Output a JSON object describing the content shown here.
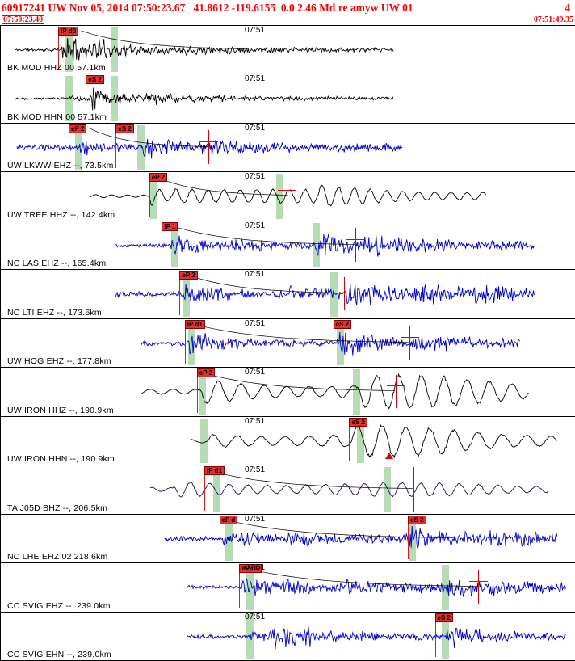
{
  "header": {
    "title": "60917241 UW Nov 05, 2014 07:50:23.67   41.8612 -119.6155  0.0 2.46 Md re amyw UW 01",
    "right_value": "4",
    "time_left": "07:50:23.40",
    "time_right": "07:51:49.35",
    "accent_color": "#ff0000"
  },
  "colors": {
    "band": "#b5dcb5",
    "pick": "#e03030",
    "marker": "#e00000",
    "purple": "#3a0080",
    "wave_blue": "#0000cc",
    "wave_black": "#000000"
  },
  "traces": [
    {
      "label": "BK MOD HHZ 00 57.1km",
      "time_label": "07:51",
      "color": "#000000",
      "wave": {
        "style": "hf",
        "x0": 0.025,
        "x1": 0.684,
        "base": 1.8,
        "seed": 11,
        "bursts": [
          {
            "at": 0.105,
            "amp": 17,
            "decay": 0.055
          },
          {
            "at": 0.16,
            "amp": 7,
            "decay": 0.1
          },
          {
            "at": 0.3,
            "amp": 2.5,
            "decay": 0.3
          }
        ]
      },
      "picks": [
        {
          "label": "iP d0",
          "x": 0.1
        }
      ],
      "bands": [
        0.118,
        0.197
      ],
      "markers": [
        {
          "type": "hline",
          "x0": 0.107,
          "x1": 0.432
        },
        {
          "type": "whisker",
          "x": 0.432
        }
      ],
      "coda": {
        "x0": 0.14,
        "x1": 0.432
      }
    },
    {
      "label": "BK MOD HHN 00 57.1km",
      "time_label": "07:51",
      "color": "#000000",
      "wave": {
        "style": "hf",
        "x0": 0.025,
        "x1": 0.684,
        "base": 1.5,
        "seed": 22,
        "bursts": [
          {
            "at": 0.118,
            "amp": 4,
            "decay": 0.03
          },
          {
            "at": 0.155,
            "amp": 12,
            "decay": 0.06
          },
          {
            "at": 0.24,
            "amp": 4,
            "decay": 0.2
          }
        ]
      },
      "picks": [
        {
          "label": "eS 2",
          "x": 0.148
        }
      ],
      "bands": [
        0.118,
        0.197
      ],
      "markers": []
    },
    {
      "label": "UW LKWW EHZ --, 73.5km",
      "time_label": "07:51",
      "color": "#0000cc",
      "wave": {
        "style": "hf",
        "x0": 0.028,
        "x1": 0.7,
        "base": 3.5,
        "seed": 33,
        "bursts": [
          {
            "at": 0.135,
            "amp": 7,
            "decay": 0.05
          },
          {
            "at": 0.245,
            "amp": 11,
            "decay": 0.06
          },
          {
            "at": 0.35,
            "amp": 4,
            "decay": 0.25
          }
        ]
      },
      "picks": [
        {
          "label": "eP 2",
          "x": 0.118
        },
        {
          "label": "eS 2",
          "x": 0.2
        }
      ],
      "bands": [
        0.135,
        0.243
      ],
      "markers": [
        {
          "type": "whisker",
          "x": 0.361
        }
      ],
      "coda": {
        "x0": 0.155,
        "x1": 0.361
      }
    },
    {
      "label": "UW TREE HHZ --, 142.4km",
      "time_label": "07:51",
      "color": "#000000",
      "wave": {
        "style": "lp",
        "x0": 0.155,
        "x1": 0.845,
        "base": 2.5,
        "seed": 44,
        "wavelength": 20,
        "bursts": [
          {
            "at": 0.258,
            "amp": 20,
            "decay": 0.04
          },
          {
            "at": 0.3,
            "amp": 9,
            "decay": 0.45
          },
          {
            "at": 0.55,
            "amp": 5,
            "decay": 0.4
          }
        ]
      },
      "picks": [
        {
          "label": "eP 2",
          "x": 0.258
        }
      ],
      "bands": [
        0.265,
        0.485
      ],
      "markers": [
        {
          "type": "whisker",
          "x": 0.497
        }
      ],
      "coda": {
        "x0": 0.27,
        "x1": 0.5
      }
    },
    {
      "label": "NC LAS EHZ --, 165.4km",
      "time_label": "07:51",
      "color": "#0000cc",
      "wave": {
        "style": "hf",
        "x0": 0.2,
        "x1": 0.93,
        "base": 2.0,
        "seed": 55,
        "bursts": [
          {
            "at": 0.295,
            "amp": 15,
            "decay": 0.06
          },
          {
            "at": 0.4,
            "amp": 4,
            "decay": 0.3
          },
          {
            "at": 0.545,
            "amp": 15,
            "decay": 0.06
          },
          {
            "at": 0.63,
            "amp": 7,
            "decay": 0.2
          }
        ]
      },
      "picks": [
        {
          "label": "iP 1",
          "x": 0.28
        }
      ],
      "bands": [
        0.302,
        0.548
      ],
      "markers": [
        {
          "type": "whisker",
          "x": 0.617
        }
      ],
      "coda": {
        "x0": 0.3,
        "x1": 0.617
      }
    },
    {
      "label": "NC LTI EHZ --, 173.6km",
      "time_label": "07:51",
      "color": "#0000cc",
      "wave": {
        "style": "hf",
        "x0": 0.2,
        "x1": 0.93,
        "base": 3.0,
        "seed": 66,
        "bursts": [
          {
            "at": 0.315,
            "amp": 11,
            "decay": 0.08
          },
          {
            "at": 0.5,
            "amp": 6,
            "decay": 0.1
          },
          {
            "at": 0.6,
            "amp": 12,
            "decay": 0.08
          },
          {
            "at": 0.72,
            "amp": 8,
            "decay": 0.1
          },
          {
            "at": 0.82,
            "amp": 7,
            "decay": 0.1
          }
        ]
      },
      "picks": [
        {
          "label": "eP 2",
          "x": 0.311
        }
      ],
      "bands": [
        0.322,
        0.578
      ],
      "markers": [
        {
          "type": "whisker",
          "x": 0.597
        }
      ],
      "coda": {
        "x0": 0.325,
        "x1": 0.597
      }
    },
    {
      "label": "UW HOG EHZ --, 177.8km",
      "time_label": "07:51",
      "color": "#0000cc",
      "wave": {
        "style": "hf",
        "x0": 0.245,
        "x1": 0.905,
        "base": 3.0,
        "seed": 77,
        "bursts": [
          {
            "at": 0.325,
            "amp": 12,
            "decay": 0.07
          },
          {
            "at": 0.585,
            "amp": 13,
            "decay": 0.08
          },
          {
            "at": 0.72,
            "amp": 5,
            "decay": 0.2
          }
        ]
      },
      "picks": [
        {
          "label": "iP d1",
          "x": 0.32
        },
        {
          "label": "eS 2",
          "x": 0.578
        }
      ],
      "bands": [
        0.332,
        0.59
      ],
      "markers": [
        {
          "type": "whisker",
          "x": 0.71
        }
      ],
      "coda": {
        "x0": 0.335,
        "x1": 0.71
      }
    },
    {
      "label": "UW IRON HHZ --, 190.9km",
      "time_label": "07:51",
      "color": "#000000",
      "wave": {
        "style": "lp",
        "x0": 0.245,
        "x1": 0.92,
        "base": 3.0,
        "seed": 88,
        "wavelength": 28,
        "bursts": [
          {
            "at": 0.345,
            "amp": 13,
            "decay": 0.5
          },
          {
            "at": 0.62,
            "amp": 15,
            "decay": 0.3
          }
        ]
      },
      "picks": [
        {
          "label": "eP 2",
          "x": 0.341
        }
      ],
      "bands": [
        0.35,
        0.618
      ],
      "markers": [
        {
          "type": "whisker",
          "x": 0.687
        }
      ],
      "coda": {
        "x0": 0.35,
        "x1": 0.687
      }
    },
    {
      "label": "UW IRON HHN --, 190.9km",
      "time_label": "07:51",
      "color": "#000000",
      "wave": {
        "style": "lp",
        "x0": 0.33,
        "x1": 0.97,
        "base": 3.0,
        "seed": 99,
        "wavelength": 30,
        "bursts": [
          {
            "at": 0.36,
            "amp": 9,
            "decay": 0.5
          },
          {
            "at": 0.61,
            "amp": 13,
            "decay": 0.4
          }
        ]
      },
      "picks": [
        {
          "label": "eS 2",
          "x": 0.606
        }
      ],
      "bands": [
        0.352,
        0.625
      ],
      "markers": [
        {
          "type": "triangle",
          "x": 0.675
        }
      ]
    },
    {
      "label": "TA J05D BHZ --, 206.5km",
      "time_label": "07:51",
      "color": "#2b0a57",
      "wave": {
        "style": "lp",
        "x0": 0.26,
        "x1": 0.955,
        "base": 2.5,
        "seed": 110,
        "wavelength": 24,
        "bursts": [
          {
            "at": 0.3,
            "amp": 8,
            "decay": 1.2
          }
        ]
      },
      "picks": [
        {
          "label": "iP d1",
          "x": 0.354
        }
      ],
      "bands": [
        0.375,
        0.672
      ],
      "markers": [
        {
          "type": "vline",
          "x": 0.717
        }
      ],
      "coda": {
        "x0": 0.36,
        "x1": 0.717
      }
    },
    {
      "label": "NC LHE EHZ 02 218.6km",
      "time_label": "07:51",
      "color": "#0000cc",
      "wave": {
        "style": "hf",
        "x0": 0.285,
        "x1": 0.97,
        "base": 3.0,
        "seed": 121,
        "bursts": [
          {
            "at": 0.385,
            "amp": 11,
            "decay": 0.08
          },
          {
            "at": 0.5,
            "amp": 4,
            "decay": 0.3
          },
          {
            "at": 0.71,
            "amp": 11,
            "decay": 0.08
          },
          {
            "at": 0.85,
            "amp": 5,
            "decay": 0.2
          }
        ]
      },
      "picks": [
        {
          "label": "eP d",
          "x": 0.38
        },
        {
          "label": "eS 2",
          "x": 0.708
        }
      ],
      "bands": [
        0.396,
        0.715
      ],
      "markers": [
        {
          "type": "vline",
          "x": 0.732,
          "color": "#3a0080"
        },
        {
          "type": "whisker",
          "x": 0.79
        }
      ],
      "coda": {
        "x0": 0.39,
        "x1": 0.79
      }
    },
    {
      "label": "CC SVIG EHZ --, 239.0km",
      "time_label": "07:51",
      "color": "#0000cc",
      "wave": {
        "style": "hf",
        "x0": 0.325,
        "x1": 0.985,
        "base": 2.5,
        "seed": 132,
        "bursts": [
          {
            "at": 0.42,
            "amp": 13,
            "decay": 0.1
          },
          {
            "at": 0.6,
            "amp": 5,
            "decay": 0.3
          },
          {
            "at": 0.775,
            "amp": 9,
            "decay": 0.12
          }
        ]
      },
      "picks": [
        {
          "label": "eP d0",
          "x": 0.415
        }
      ],
      "bands": [
        0.432,
        0.772
      ],
      "markers": [
        {
          "type": "whisker",
          "x": 0.83
        }
      ],
      "coda": {
        "x0": 0.425,
        "x1": 0.83
      }
    },
    {
      "label": "CC SVIG EHN --, 239.0km",
      "time_label": "07:51",
      "color": "#0000cc",
      "wave": {
        "style": "hf",
        "x0": 0.325,
        "x1": 0.985,
        "base": 2.5,
        "seed": 143,
        "bursts": [
          {
            "at": 0.432,
            "amp": 5,
            "decay": 0.15
          },
          {
            "at": 0.47,
            "amp": 12,
            "decay": 0.1
          },
          {
            "at": 0.775,
            "amp": 11,
            "decay": 0.1
          }
        ]
      },
      "picks": [
        {
          "label": "eS 2",
          "x": 0.755
        }
      ],
      "bands": [
        0.432,
        0.772
      ],
      "markers": []
    }
  ]
}
